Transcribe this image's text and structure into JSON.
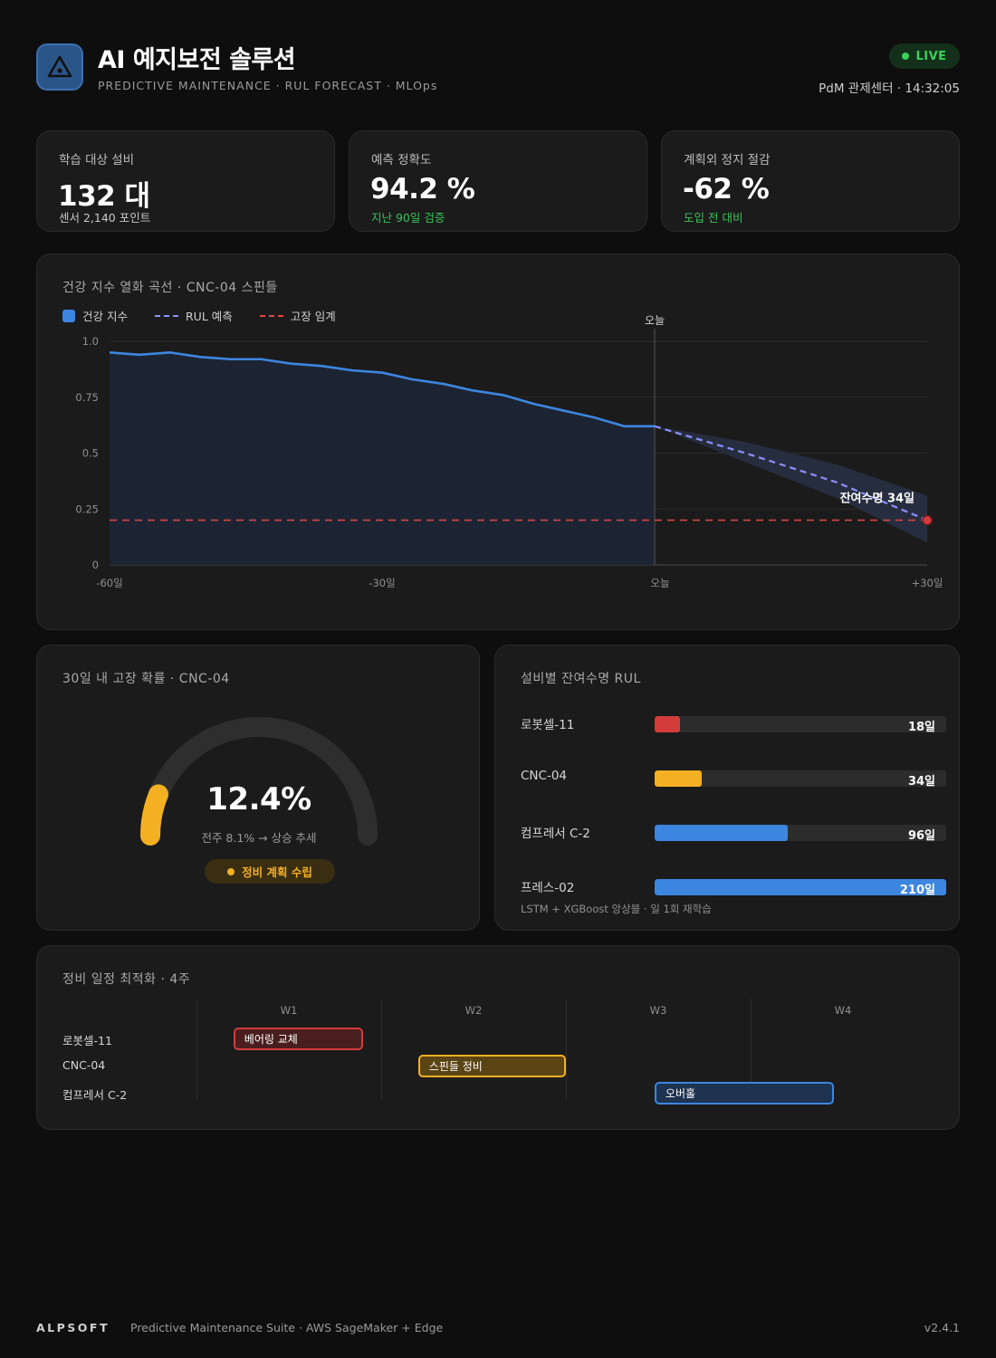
{
  "header": {
    "title": "AI 예지보전 솔루션",
    "subtitle": "PREDICTIVE MAINTENANCE · RUL FORECAST · MLOps",
    "live_label": "LIVE",
    "meta": "PdM 관제센터 · 14:32:05"
  },
  "kpis": [
    {
      "label": "학습 대상 설비",
      "value": "132 대",
      "note": "센서 2,140 포인트"
    },
    {
      "label": "예측 정확도",
      "value": "94.2 %",
      "note": "지난 90일 검증"
    },
    {
      "label": "계획외 정지 절감",
      "value": "-62 %",
      "note": "도입 전 대비"
    }
  ],
  "health_chart": {
    "title": "건강 지수 열화 곡선 · CNC-04 스핀들",
    "legend": {
      "health": "건강 지수",
      "rul": "RUL 예측",
      "threshold": "고장 임계"
    },
    "today_label": "오늘",
    "rul_annotation": "잔여수명 34일"
  },
  "chart_data": {
    "type": "line",
    "x_tick_labels": [
      "-60일",
      "-30일",
      "오늘",
      "+30일"
    ],
    "xlim": [
      -60,
      30
    ],
    "ylim": [
      0,
      1.0
    ],
    "y_tick_labels": [
      "0",
      "0.25",
      "0.5",
      "0.75",
      "1.0"
    ],
    "y_ticks": [
      0,
      0.25,
      0.5,
      0.75,
      1.0
    ],
    "series": [
      {
        "name": "건강 지수",
        "x": [
          -60,
          -56.7,
          -53.3,
          -50,
          -46.7,
          -43.3,
          -40,
          -36.7,
          -33.3,
          -30,
          -26.7,
          -23.3,
          -20,
          -16.7,
          -13.3,
          -10,
          -6.7,
          -3.3,
          0
        ],
        "y": [
          0.95,
          0.94,
          0.95,
          0.93,
          0.92,
          0.92,
          0.9,
          0.89,
          0.87,
          0.86,
          0.83,
          0.81,
          0.78,
          0.76,
          0.72,
          0.69,
          0.66,
          0.62,
          0.62
        ]
      },
      {
        "name": "RUL 예측",
        "x": [
          0,
          10,
          20,
          30
        ],
        "y": [
          0.62,
          0.5,
          0.37,
          0.2
        ]
      },
      {
        "name": "고장 임계",
        "x": [
          -60,
          30
        ],
        "y": [
          0.2,
          0.2
        ]
      }
    ],
    "band": {
      "x": [
        0,
        10,
        20,
        30
      ],
      "upper": [
        0.62,
        0.55,
        0.45,
        0.31
      ],
      "lower": [
        0.62,
        0.46,
        0.3,
        0.1
      ]
    },
    "grid": true,
    "legend_position": "top-left"
  },
  "gauge": {
    "title": "30일 내 고장 확률 · CNC-04",
    "value": "12.4%",
    "fraction": 0.124,
    "sub": "전주 8.1% → 상승 추세",
    "status": "정비 계획 수립"
  },
  "rul_list": {
    "title": "설비별 잔여수명 RUL",
    "max_days": 210,
    "items": [
      {
        "name": "로봇셀-11",
        "days": 18,
        "label": "18일",
        "color": "#d43c3c"
      },
      {
        "name": "CNC-04",
        "days": 34,
        "label": "34일",
        "color": "#f4b023"
      },
      {
        "name": "컴프레서 C-2",
        "days": 96,
        "label": "96일",
        "color": "#3d86e0"
      },
      {
        "name": "프레스-02",
        "days": 210,
        "label": "210일",
        "color": "#3d86e0"
      }
    ],
    "footnote": "LSTM + XGBoost 앙상블 · 일 1회 재학습"
  },
  "schedule": {
    "title": "정비 일정 최적화 · 4주",
    "weeks": [
      "W1",
      "W2",
      "W3",
      "W4"
    ],
    "rows": [
      {
        "equipment": "로봇셀-11",
        "task": "베어링 교체",
        "start_week": 1.2,
        "end_week": 1.9,
        "fill": "#4a1e1e",
        "border": "#d43c3c"
      },
      {
        "equipment": "CNC-04",
        "task": "스핀들 정비",
        "start_week": 2.2,
        "end_week": 3.0,
        "fill": "#5a4414",
        "border": "#f4b023"
      },
      {
        "equipment": "컴프레서 C-2",
        "task": "오버홀",
        "start_week": 3.48,
        "end_week": 4.45,
        "fill": "#1e3350",
        "border": "#3d86e0"
      }
    ]
  },
  "footer": {
    "brand": "ALPSOFT",
    "desc": "Predictive Maintenance Suite · AWS SageMaker + Edge",
    "version": "v2.4.1"
  }
}
